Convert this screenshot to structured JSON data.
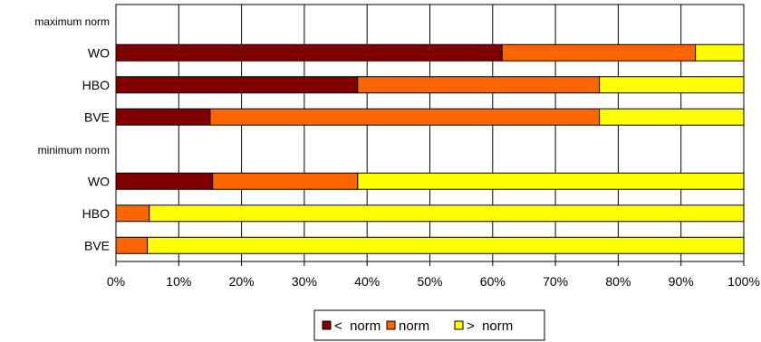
{
  "chart_data": {
    "type": "bar",
    "orientation": "horizontal",
    "stacked": "percent",
    "categories": [
      "maximum norm",
      "WO",
      "HBO",
      "BVE",
      "minimum norm",
      "WO",
      "HBO",
      "BVE"
    ],
    "series": [
      {
        "name": "<  norm",
        "color": "#800000",
        "values": [
          null,
          61.5,
          38.5,
          15.0,
          null,
          15.4,
          0,
          0
        ]
      },
      {
        "name": "norm",
        "color": "#FF6600",
        "values": [
          null,
          30.8,
          38.5,
          62.0,
          null,
          23.1,
          5.3,
          5.0
        ]
      },
      {
        "name": ">  norm",
        "color": "#FFFF00",
        "values": [
          null,
          7.7,
          23.0,
          23.0,
          null,
          61.5,
          94.7,
          95.0
        ]
      }
    ],
    "xlim": [
      0,
      100
    ],
    "xticks": [
      "0%",
      "10%",
      "20%",
      "30%",
      "40%",
      "50%",
      "60%",
      "70%",
      "80%",
      "90%",
      "100%"
    ],
    "grid": "vertical",
    "legend": "bottom"
  }
}
